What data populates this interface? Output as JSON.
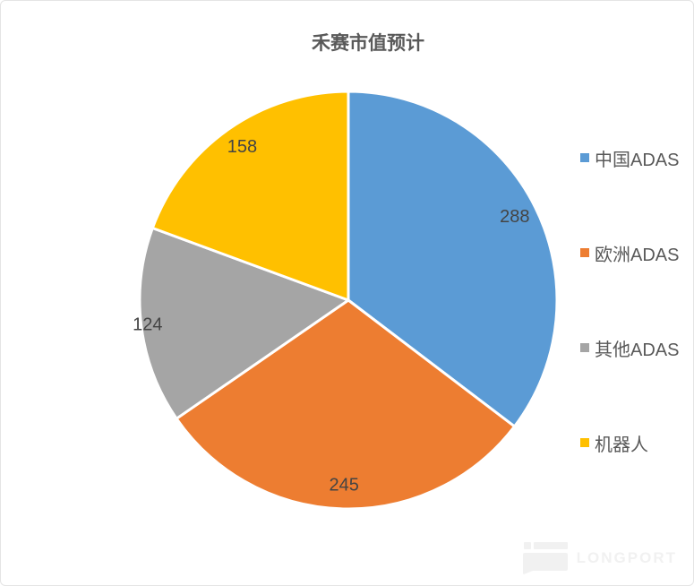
{
  "page": {
    "background_color": "#ffffff",
    "border_color": "#e4e4e4"
  },
  "chart_data": {
    "type": "pie",
    "title": "禾赛市值预计",
    "categories": [
      "中国ADAS",
      "欧洲ADAS",
      "其他ADAS",
      "机器人"
    ],
    "values": [
      288,
      245,
      124,
      158
    ],
    "colors": [
      "#5B9BD5",
      "#ED7D31",
      "#A5A5A5",
      "#FFC000"
    ],
    "data_labels": [
      "288",
      "245",
      "124",
      "158"
    ],
    "start_angle_deg": 0,
    "direction": "clockwise",
    "legend_position": "right",
    "title_color": "#595959",
    "label_color": "#444444",
    "legend_text_color": "#595959",
    "slice_divider_color": "#ffffff"
  },
  "watermark": {
    "text": "LONGPORT",
    "color": "#f1f1f1"
  }
}
